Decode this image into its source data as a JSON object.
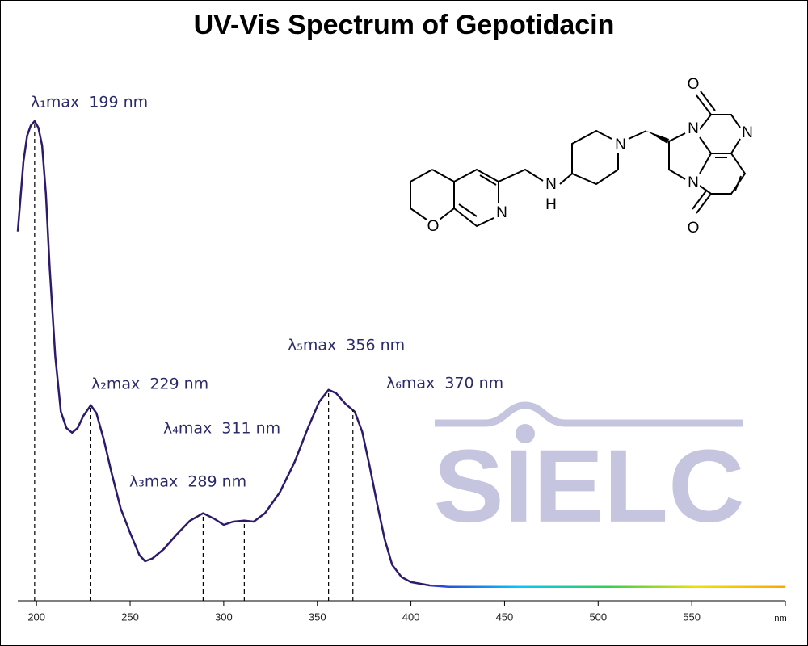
{
  "chart_data": {
    "type": "line",
    "title": "UV-Vis Spectrum of Gepotidacin",
    "x_label": "nm",
    "x": [
      190,
      193,
      195,
      197,
      199,
      201,
      203,
      205,
      207,
      210,
      213,
      216,
      219,
      222,
      225,
      229,
      232,
      236,
      240,
      245,
      250,
      255,
      258,
      262,
      268,
      275,
      282,
      289,
      295,
      300,
      305,
      311,
      316,
      322,
      330,
      338,
      345,
      351,
      356,
      360,
      365,
      370,
      374,
      378,
      382,
      386,
      390,
      395,
      400,
      410,
      420,
      450,
      500,
      550,
      600
    ],
    "values": [
      0.763,
      0.913,
      0.969,
      0.991,
      1.0,
      0.986,
      0.948,
      0.844,
      0.688,
      0.497,
      0.376,
      0.341,
      0.331,
      0.341,
      0.367,
      0.39,
      0.373,
      0.315,
      0.246,
      0.168,
      0.116,
      0.068,
      0.055,
      0.061,
      0.081,
      0.113,
      0.142,
      0.158,
      0.146,
      0.133,
      0.14,
      0.142,
      0.14,
      0.158,
      0.203,
      0.269,
      0.341,
      0.397,
      0.423,
      0.416,
      0.393,
      0.376,
      0.333,
      0.258,
      0.177,
      0.102,
      0.047,
      0.021,
      0.01,
      0.003,
      0,
      0,
      0,
      0,
      0
    ],
    "color": "#2e1a6b",
    "spectrum_colors": [
      "#2e1a6b",
      "#3030d0",
      "#00c8ff",
      "#30d050",
      "#f0e000",
      "#ffa500"
    ],
    "xlim": [
      190,
      600
    ],
    "xticks": [
      200,
      250,
      300,
      350,
      400,
      450,
      500,
      550
    ],
    "ylim": [
      -0.03,
      1.0
    ],
    "annotations": [
      {
        "text": "λ₁max  199 nm",
        "x": 199
      },
      {
        "text": "λ₂max  229 nm",
        "x": 229
      },
      {
        "text": "λ₃max  289 nm",
        "x": 289
      },
      {
        "text": "λ₄max  311 nm",
        "x": 311
      },
      {
        "text": "λ₅max  356 nm",
        "x": 356
      },
      {
        "text": "λ₆max  370 nm",
        "x": 369
      }
    ],
    "watermark": "SIELC",
    "structure_labels": [
      "O",
      "N",
      "N",
      "H",
      "N",
      "N",
      "N",
      "N",
      "O",
      "O"
    ]
  }
}
